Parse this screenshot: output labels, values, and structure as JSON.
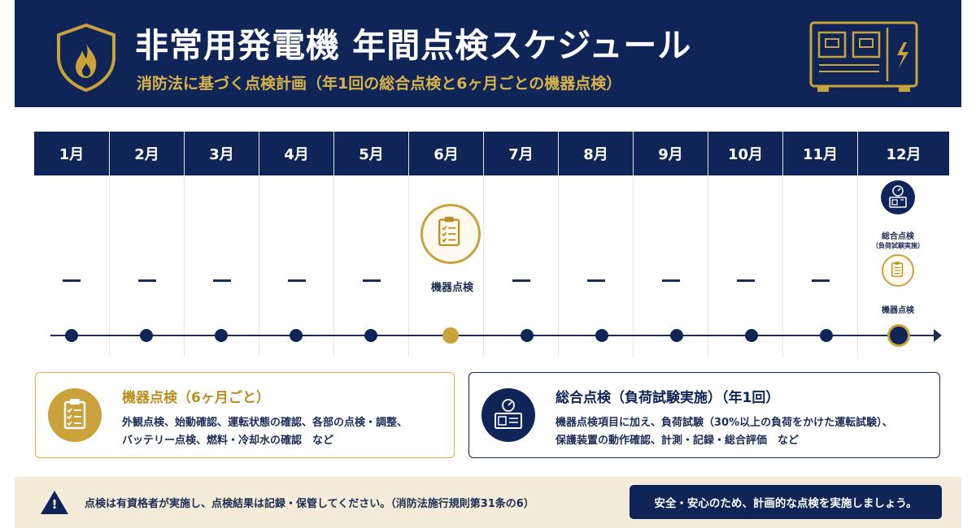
{
  "header": {
    "title": "非常用発電機 年間点検スケジュール",
    "subtitle": "消防法に基づく点検計画（年1回の総合点検と6ヶ月ごとの機器点検）"
  },
  "months": [
    "1月",
    "2月",
    "3月",
    "4月",
    "5月",
    "6月",
    "7月",
    "8月",
    "9月",
    "10月",
    "11月",
    "12月"
  ],
  "events": {
    "june": {
      "label": "機器点検"
    },
    "december": {
      "overall_label": "総合点検",
      "overall_sub": "（負荷試験実施）",
      "equipment_label": "機器点検"
    }
  },
  "legend": {
    "equipment": {
      "title": "機器点検（6ヶ月ごと）",
      "line1": "外観点検、始動確認、運転状態の確認、各部の点検・調整、",
      "line2": "バッテリー点検、燃料・冷却水の確認　など"
    },
    "overall": {
      "title": "総合点検（負荷試験実施）（年1回）",
      "line1": "機器点検項目に加え、負荷試験（30%以上の負荷をかけた運転試験）、",
      "line2": "保護装置の動作確認、計測・記録・総合評価　など"
    }
  },
  "footer": {
    "note": "点検は有資格者が実施し、点検結果は記録・保管してください。（消防法施行規則第31条の6）",
    "button": "安全・安心のため、計画的な点検を実施しましょう。"
  },
  "colors": {
    "navy": "#0f2557",
    "gold": "#c9a23b",
    "cream": "#f4ecd8"
  }
}
